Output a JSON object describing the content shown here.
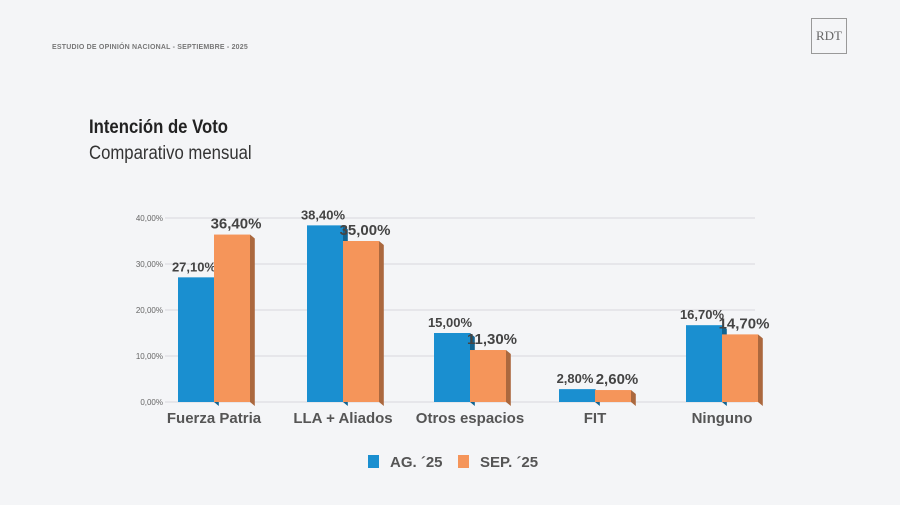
{
  "header": {
    "study": "ESTUDIO DE OPINIÓN NACIONAL - SEPTIEMBRE - 2025",
    "logo": "RDT"
  },
  "chart_data": {
    "type": "bar",
    "title": "Intención de Voto",
    "subtitle": "Comparativo mensual",
    "categories": [
      "Fuerza Patria",
      "LLA + Aliados",
      "Otros espacios",
      "FIT",
      "Ninguno"
    ],
    "series": [
      {
        "name": "AG. ´25",
        "values": [
          27.1,
          38.4,
          15.0,
          2.8,
          16.7
        ],
        "labels": [
          "27,10%",
          "38,40%",
          "15,00%",
          "2,80%",
          "16,70%"
        ],
        "color": "#1a8fd0"
      },
      {
        "name": "SEP. ´25",
        "values": [
          36.4,
          35.0,
          11.3,
          2.6,
          14.7
        ],
        "labels": [
          "36,40%",
          "35,00%",
          "11,30%",
          "2,60%",
          "14,70%"
        ],
        "color": "#f5955a"
      }
    ],
    "yticks": [
      "0,00%",
      "10,00%",
      "20,00%",
      "30,00%",
      "40,00%"
    ],
    "ylim": [
      0,
      40
    ],
    "grid": true,
    "legend": "bottom"
  }
}
